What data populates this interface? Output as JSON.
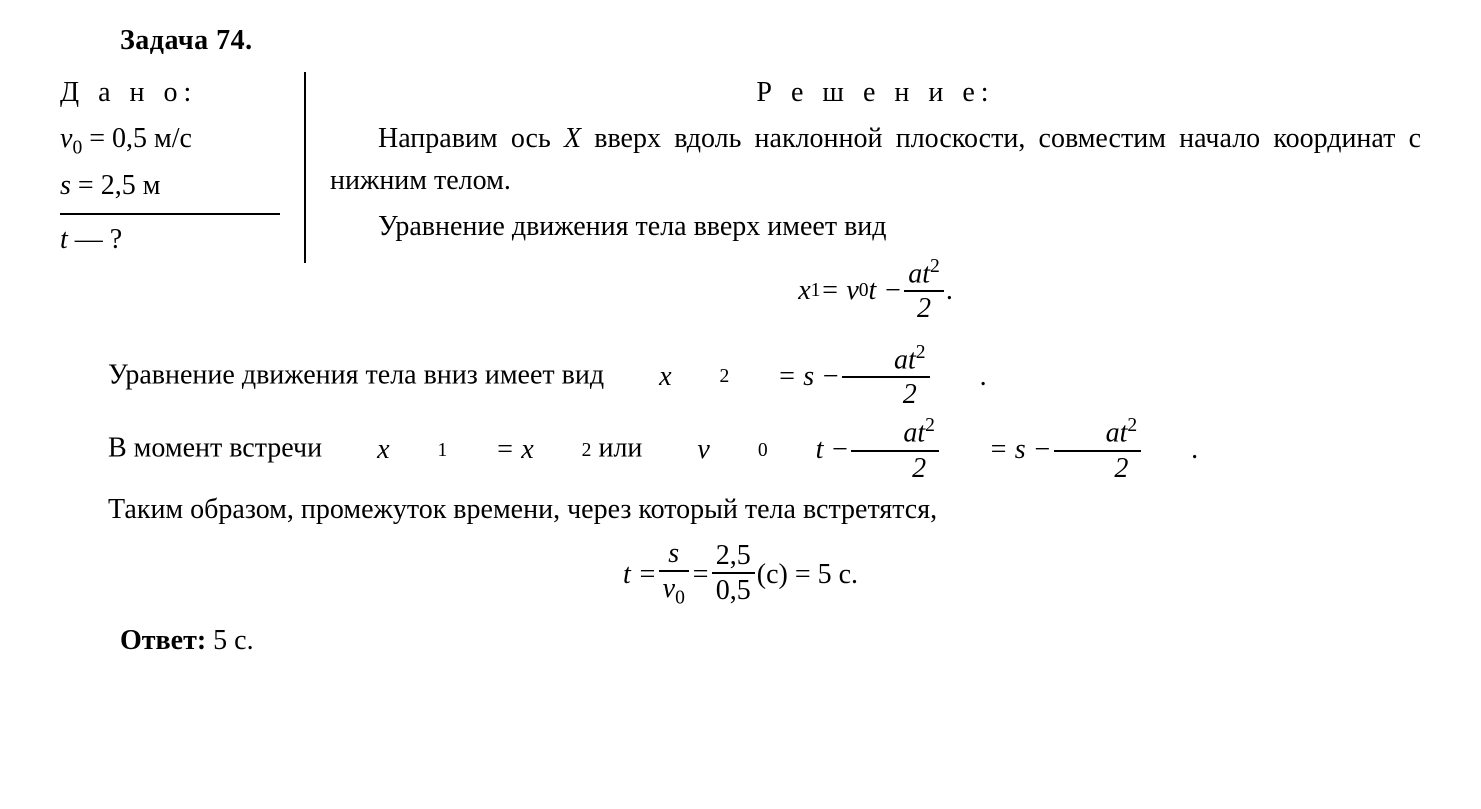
{
  "title": "Задача 74.",
  "given": {
    "label": "Д а н о:",
    "v0_lhs": "v",
    "v0_sub": "0",
    "v0_val": " = 0,5 ",
    "v0_unit": "м/с",
    "s_lhs": "s",
    "s_val": " = 2,5 ",
    "s_unit": "м",
    "t_lhs": "t",
    "t_tail": " — ?"
  },
  "solution": {
    "label": "Р е ш е н и е:",
    "p1a": "Направим ось ",
    "p1_X": "X",
    "p1b": " вверх вдоль наклонной плоскости, совместим начало координат с нижним телом.",
    "p2": "Уравнение движения тела вверх имеет вид",
    "eq1_lhs": "x",
    "eq1_sub": "1",
    "eq1_mid": " = v",
    "eq1_v0sub": "0",
    "eq1_t": "t − ",
    "eq1_num": "at",
    "eq1_sup": "2",
    "eq1_den": "2",
    "eq1_tail": " .",
    "p3a": "Уравнение движения тела вниз имеет вид ",
    "eq2_lhs": "x",
    "eq2_sub": "2",
    "eq2_mid": " = s − ",
    "eq2_num": "at",
    "eq2_sup": "2",
    "eq2_den": "2",
    "eq2_tail": " .",
    "p4a": "В момент встречи ",
    "eq3a": "x",
    "eq3a_sub": "1",
    "eq3_eq": " = x",
    "eq3b_sub": "2",
    "p4b": " или ",
    "eq3c": "v",
    "eq3c_sub": "0",
    "eq3c_t": "t − ",
    "eq3_num1": "at",
    "eq3_sup1": "2",
    "eq3_den1": "2",
    "eq3_mid2": " = s − ",
    "eq3_num2": "at",
    "eq3_sup2": "2",
    "eq3_den2": "2",
    "eq3_tail": " .",
    "p5": "Таким образом, промежуток времени, через который тела встретятся,",
    "eq4_lhs": "t = ",
    "eq4_num1": "s",
    "eq4_den1_v": "v",
    "eq4_den1_sub": "0",
    "eq4_mid": " = ",
    "eq4_num2": "2,5",
    "eq4_den2": "0,5",
    "eq4_tail": " (с) = 5 с."
  },
  "answer": {
    "label": "Ответ:",
    "value": " 5 с."
  }
}
